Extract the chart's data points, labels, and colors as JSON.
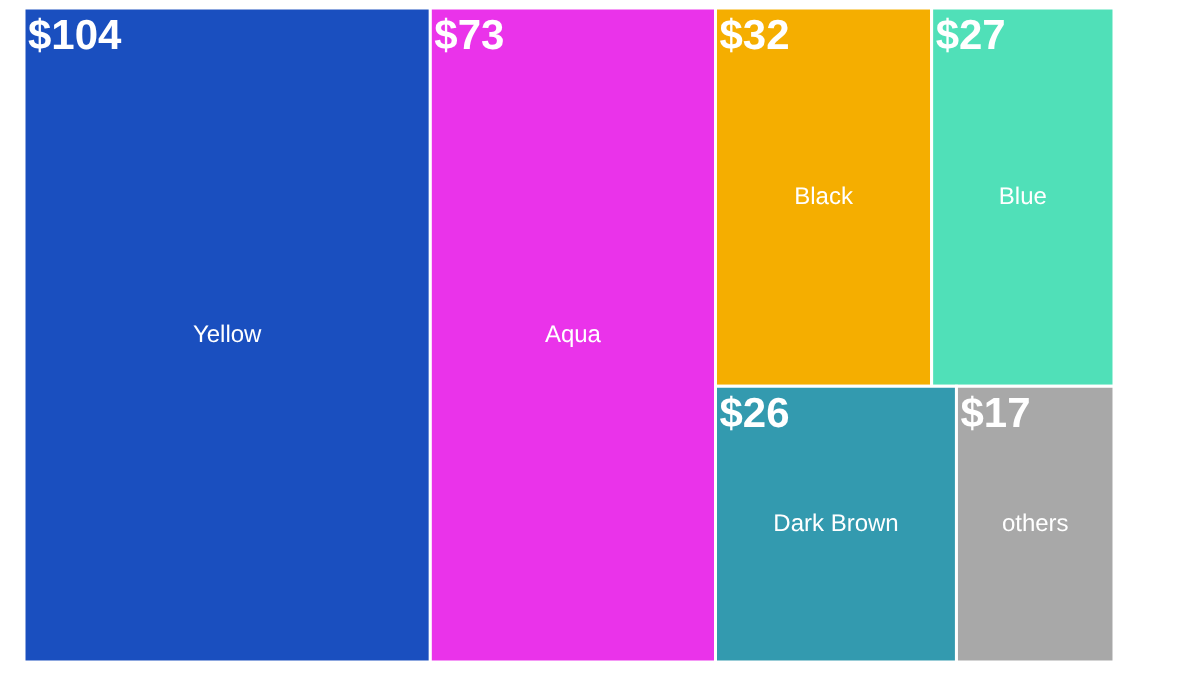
{
  "chart_data": {
    "type": "other",
    "categories": [
      "Yellow",
      "Aqua",
      "Black",
      "Blue",
      "Dark Brown",
      "others"
    ],
    "values": [
      104,
      73,
      32,
      27,
      26,
      17
    ],
    "value_labels": [
      "$104",
      "$73",
      "$32",
      "$27",
      "$26",
      "$17"
    ],
    "colors": [
      "#1a4fbf",
      "#ea33ea",
      "#f5ae00",
      "#50e0b8",
      "#339aaf",
      "#a8a8a8"
    ]
  }
}
